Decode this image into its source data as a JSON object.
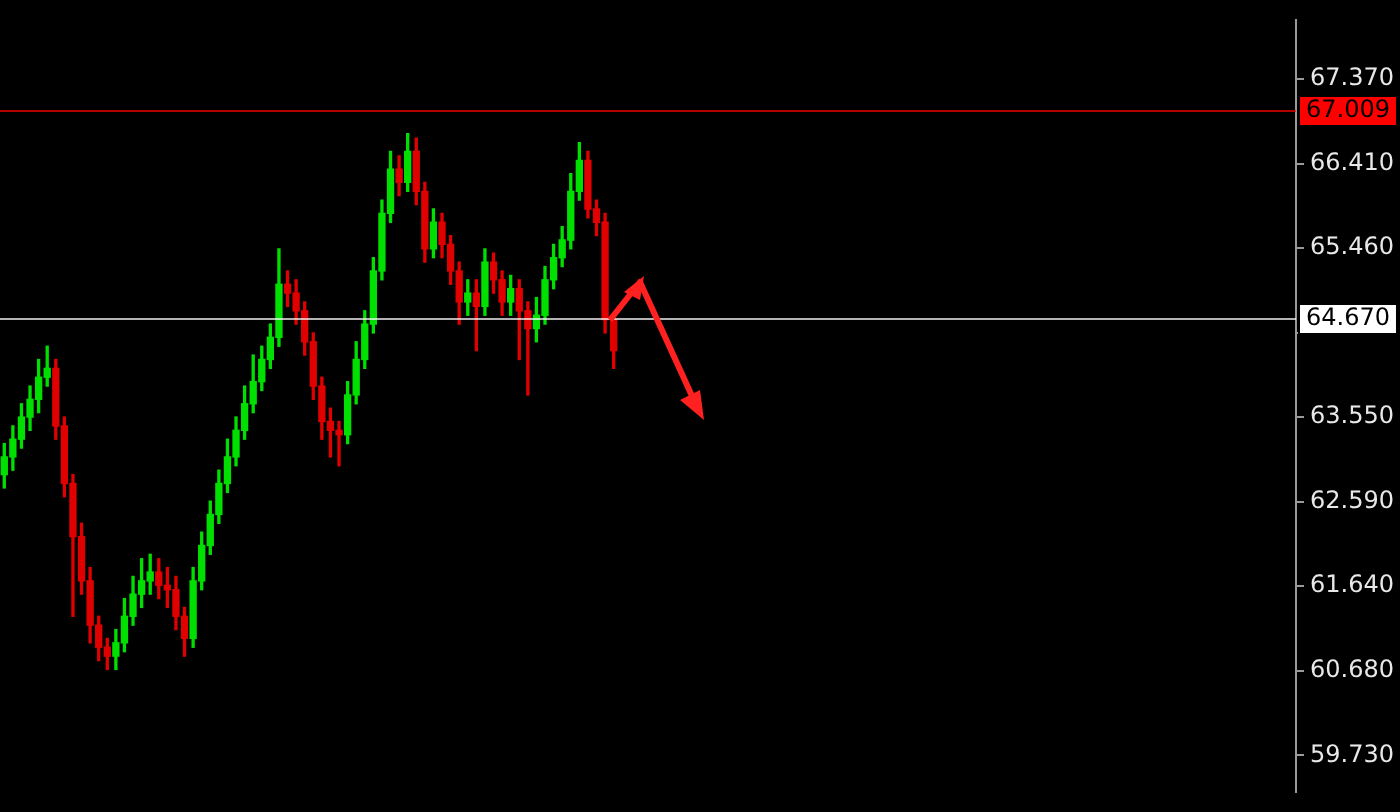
{
  "chart_data": {
    "type": "candlestick",
    "categories": [
      null,
      null,
      null,
      null,
      null,
      null,
      null,
      null,
      null,
      null,
      null,
      null,
      null,
      null,
      null,
      null,
      null,
      null,
      null,
      null,
      null,
      null,
      null,
      null,
      null,
      null,
      null,
      null,
      null,
      null,
      null,
      null,
      null,
      null,
      null,
      null,
      null,
      null,
      null,
      null,
      null,
      null,
      null,
      null,
      null,
      null,
      null,
      null,
      null,
      null,
      null,
      null,
      null,
      null,
      null,
      null,
      null,
      null,
      null,
      null,
      null,
      null,
      null,
      null,
      null,
      null,
      null,
      null,
      null,
      null,
      null,
      null,
      null,
      null,
      null,
      null,
      null,
      null,
      null,
      null,
      null,
      null,
      null,
      null,
      null,
      null,
      null,
      null,
      null,
      null,
      null,
      null,
      null,
      null,
      null,
      null,
      null,
      null,
      null,
      null,
      null,
      null,
      null,
      null,
      null,
      null,
      null,
      null,
      null,
      null,
      null,
      null,
      null,
      null,
      null,
      null,
      null,
      null,
      null,
      null,
      null,
      null,
      null,
      null,
      null,
      null,
      null,
      null,
      null,
      null,
      null,
      null,
      null,
      null,
      null,
      null,
      null,
      null,
      null,
      null,
      null,
      null,
      null,
      null,
      null,
      null,
      null,
      null,
      null,
      null,
      null
    ],
    "ohlc": [
      [
        62.9,
        63.25,
        62.75,
        63.1
      ],
      [
        63.1,
        63.45,
        62.95,
        63.3
      ],
      [
        63.3,
        63.7,
        63.2,
        63.55
      ],
      [
        63.55,
        63.9,
        63.4,
        63.75
      ],
      [
        63.75,
        64.2,
        63.6,
        64.0
      ],
      [
        64.0,
        64.35,
        63.9,
        64.1
      ],
      [
        64.1,
        64.2,
        63.3,
        63.45
      ],
      [
        63.45,
        63.55,
        62.65,
        62.8
      ],
      [
        62.8,
        62.9,
        61.3,
        62.2
      ],
      [
        62.2,
        62.35,
        61.55,
        61.7
      ],
      [
        61.7,
        61.85,
        61.0,
        61.2
      ],
      [
        61.2,
        61.3,
        60.8,
        60.95
      ],
      [
        60.95,
        61.05,
        60.7,
        60.85
      ],
      [
        60.85,
        61.15,
        60.7,
        61.0
      ],
      [
        61.0,
        61.5,
        60.9,
        61.3
      ],
      [
        61.3,
        61.75,
        61.2,
        61.55
      ],
      [
        61.55,
        61.95,
        61.4,
        61.7
      ],
      [
        61.7,
        62.0,
        61.55,
        61.8
      ],
      [
        61.8,
        61.95,
        61.5,
        61.65
      ],
      [
        61.65,
        61.85,
        61.4,
        61.6
      ],
      [
        61.6,
        61.75,
        61.15,
        61.3
      ],
      [
        61.3,
        61.4,
        60.85,
        61.05
      ],
      [
        61.05,
        61.85,
        60.95,
        61.7
      ],
      [
        61.7,
        62.25,
        61.6,
        62.1
      ],
      [
        62.1,
        62.6,
        62.0,
        62.45
      ],
      [
        62.45,
        62.95,
        62.35,
        62.8
      ],
      [
        62.8,
        63.3,
        62.7,
        63.1
      ],
      [
        63.1,
        63.55,
        63.0,
        63.4
      ],
      [
        63.4,
        63.9,
        63.3,
        63.7
      ],
      [
        63.7,
        64.25,
        63.6,
        63.95
      ],
      [
        63.95,
        64.35,
        63.85,
        64.2
      ],
      [
        64.2,
        64.6,
        64.1,
        64.45
      ],
      [
        64.45,
        65.45,
        64.35,
        65.05
      ],
      [
        65.05,
        65.2,
        64.8,
        64.95
      ],
      [
        64.95,
        65.1,
        64.6,
        64.75
      ],
      [
        64.75,
        64.85,
        64.25,
        64.4
      ],
      [
        64.4,
        64.5,
        63.75,
        63.9
      ],
      [
        63.9,
        64.0,
        63.3,
        63.5
      ],
      [
        63.5,
        63.65,
        63.1,
        63.4
      ],
      [
        63.4,
        63.5,
        63.0,
        63.35
      ],
      [
        63.35,
        63.95,
        63.25,
        63.8
      ],
      [
        63.8,
        64.4,
        63.7,
        64.2
      ],
      [
        64.2,
        64.75,
        64.1,
        64.6
      ],
      [
        64.6,
        65.35,
        64.5,
        65.2
      ],
      [
        65.2,
        66.0,
        65.1,
        65.85
      ],
      [
        65.85,
        66.55,
        65.75,
        66.35
      ],
      [
        66.35,
        66.5,
        66.05,
        66.2
      ],
      [
        66.2,
        66.75,
        66.1,
        66.55
      ],
      [
        66.55,
        66.7,
        65.95,
        66.1
      ],
      [
        66.1,
        66.2,
        65.3,
        65.45
      ],
      [
        65.45,
        65.9,
        65.35,
        65.75
      ],
      [
        65.75,
        65.85,
        65.35,
        65.5
      ],
      [
        65.5,
        65.6,
        65.05,
        65.2
      ],
      [
        65.2,
        65.3,
        64.6,
        64.85
      ],
      [
        64.85,
        65.1,
        64.7,
        64.95
      ],
      [
        64.95,
        65.1,
        64.3,
        64.8
      ],
      [
        64.8,
        65.45,
        64.7,
        65.3
      ],
      [
        65.3,
        65.4,
        64.95,
        65.1
      ],
      [
        65.1,
        65.2,
        64.7,
        64.85
      ],
      [
        64.85,
        65.15,
        64.7,
        65.0
      ],
      [
        65.0,
        65.1,
        64.2,
        64.75
      ],
      [
        64.75,
        64.85,
        63.8,
        64.55
      ],
      [
        64.55,
        64.9,
        64.4,
        64.7
      ],
      [
        64.7,
        65.25,
        64.6,
        65.1
      ],
      [
        65.1,
        65.5,
        65.0,
        65.35
      ],
      [
        65.35,
        65.7,
        65.25,
        65.55
      ],
      [
        65.55,
        66.3,
        65.45,
        66.1
      ],
      [
        66.1,
        66.65,
        66.0,
        66.45
      ],
      [
        66.45,
        66.55,
        65.8,
        65.9
      ],
      [
        65.9,
        66.0,
        65.6,
        65.75
      ],
      [
        65.75,
        65.85,
        64.5,
        64.65
      ],
      [
        64.65,
        64.7,
        64.1,
        64.3
      ],
      null,
      null,
      null,
      null,
      null,
      null,
      null,
      null,
      null,
      null,
      null,
      null,
      null,
      null,
      null,
      null,
      null,
      null,
      null,
      null,
      null,
      null,
      null,
      null,
      null,
      null,
      null,
      null,
      null,
      null,
      null,
      null,
      null,
      null,
      null,
      null,
      null,
      null,
      null,
      null,
      null,
      null,
      null,
      null,
      null,
      null,
      null,
      null,
      null,
      null,
      null,
      null,
      null,
      null,
      null,
      null,
      null,
      null,
      null,
      null,
      null,
      null,
      null,
      null,
      null,
      null,
      null,
      null,
      null,
      null,
      null,
      null,
      null,
      null,
      null,
      null,
      null,
      null,
      null
    ],
    "colors": [
      "#00e000",
      "#00e000",
      "#00e000",
      "#00e000",
      "#00e000",
      "#00e000",
      "#e00000",
      "#e00000",
      "#e00000",
      "#e00000",
      "#e00000",
      "#e00000",
      "#e00000",
      "#00e000",
      "#00e000",
      "#00e000",
      "#00e000",
      "#00e000",
      "#e00000",
      "#e00000",
      "#e00000",
      "#e00000",
      "#00e000",
      "#00e000",
      "#00e000",
      "#00e000",
      "#00e000",
      "#00e000",
      "#00e000",
      "#00e000",
      "#00e000",
      "#00e000",
      "#00e000",
      "#e00000",
      "#e00000",
      "#e00000",
      "#e00000",
      "#e00000",
      "#e00000",
      "#e00000",
      "#00e000",
      "#00e000",
      "#00e000",
      "#00e000",
      "#00e000",
      "#00e000",
      "#e00000",
      "#00e000",
      "#e00000",
      "#e00000",
      "#00e000",
      "#e00000",
      "#e00000",
      "#e00000",
      "#00e000",
      "#e00000",
      "#00e000",
      "#e00000",
      "#e00000",
      "#00e000",
      "#e00000",
      "#e00000",
      "#00e000",
      "#00e000",
      "#00e000",
      "#00e000",
      "#00e000",
      "#00e000",
      "#e00000",
      "#e00000",
      "#e00000",
      "#e00000",
      null,
      null,
      null,
      null,
      null,
      null,
      null,
      null,
      null,
      null,
      null,
      null,
      null,
      null,
      null,
      null,
      null,
      null,
      null,
      null,
      null,
      null,
      null,
      null,
      null,
      null,
      null,
      null,
      null,
      null,
      null,
      null,
      null,
      null,
      null,
      null,
      null,
      null,
      null,
      null,
      null,
      null,
      null,
      null,
      null,
      null,
      null,
      null,
      null,
      null,
      null,
      null,
      null,
      null,
      null,
      null,
      null,
      null,
      null,
      null,
      null,
      null,
      null,
      null,
      null,
      null,
      null,
      null,
      null,
      null,
      null,
      null,
      null,
      null,
      null,
      null,
      null,
      null,
      null
    ],
    "ylim": [
      59.32,
      68.03
    ],
    "yticks": [
      {
        "value": 59.73,
        "label": "59.730"
      },
      {
        "value": 60.68,
        "label": "60.680"
      },
      {
        "value": 61.64,
        "label": "61.640"
      },
      {
        "value": 62.59,
        "label": "62.590"
      },
      {
        "value": 63.55,
        "label": "63.550"
      },
      {
        "value": 64.5,
        "label": null
      },
      {
        "value": 65.46,
        "label": "65.460"
      },
      {
        "value": 66.41,
        "label": "66.410"
      },
      {
        "value": 67.37,
        "label": "67.370"
      }
    ],
    "ref_lines": [
      {
        "axis": "y",
        "value": 67.009,
        "label": "67.009",
        "color": "#ff0000"
      },
      {
        "axis": "y",
        "value": 64.67,
        "label": "64.670",
        "color": "#ffffff"
      }
    ],
    "tick_labels": "y",
    "grid": false,
    "legend": false
  }
}
